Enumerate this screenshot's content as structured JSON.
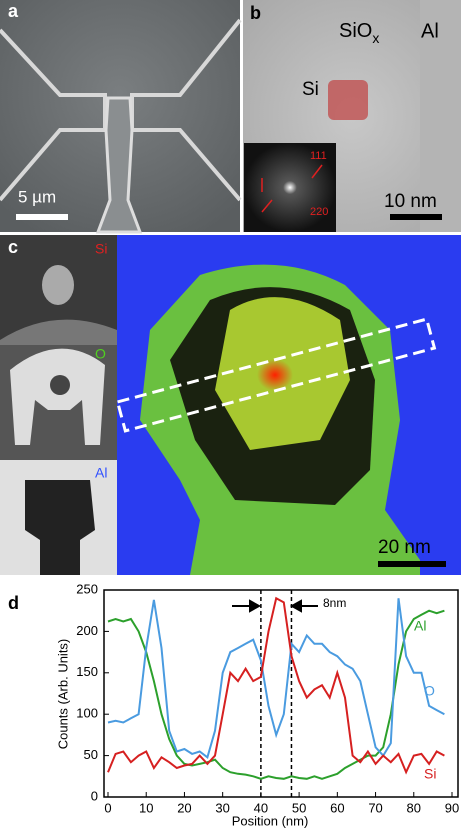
{
  "panels": {
    "a": {
      "label": "a",
      "scale_bar": "5 µm"
    },
    "b": {
      "label": "b",
      "oxide": {
        "main": "SiO",
        "sub": "x"
      },
      "metal": "Al",
      "core": "Si",
      "fft_spots": [
        "111",
        "220"
      ],
      "scale_bar": "10 nm"
    },
    "c": {
      "label": "c",
      "maps": [
        "Si",
        "O",
        "Al"
      ],
      "scale_bar": "20 nm"
    }
  },
  "chart_data": {
    "type": "line",
    "panel_label": "d",
    "x_label": "Position (nm)",
    "y_label": "Counts (Arb. Units)",
    "annotation": "8nm",
    "vlines": [
      40,
      48
    ],
    "x": [
      0,
      2,
      4,
      6,
      8,
      10,
      12,
      14,
      16,
      18,
      20,
      22,
      24,
      26,
      28,
      30,
      32,
      34,
      36,
      38,
      40,
      42,
      44,
      46,
      48,
      50,
      52,
      54,
      56,
      58,
      60,
      62,
      64,
      66,
      68,
      70,
      72,
      74,
      76,
      78,
      80,
      82,
      84,
      86,
      88
    ],
    "series": [
      {
        "name": "Al",
        "color": "#2ca02c",
        "values": [
          212,
          215,
          212,
          215,
          200,
          175,
          140,
          100,
          70,
          50,
          40,
          38,
          40,
          42,
          45,
          35,
          30,
          28,
          27,
          25,
          22,
          25,
          23,
          22,
          25,
          23,
          22,
          25,
          22,
          25,
          28,
          35,
          40,
          45,
          50,
          50,
          60,
          100,
          160,
          200,
          215,
          220,
          225,
          222,
          225
        ]
      },
      {
        "name": "O",
        "color": "#4a9be0",
        "values": [
          90,
          92,
          90,
          95,
          100,
          180,
          238,
          180,
          80,
          55,
          58,
          52,
          55,
          48,
          80,
          150,
          175,
          180,
          185,
          190,
          165,
          110,
          75,
          100,
          185,
          175,
          195,
          185,
          185,
          175,
          170,
          160,
          155,
          140,
          100,
          60,
          50,
          65,
          240,
          170,
          150,
          150,
          110,
          105,
          100
        ]
      },
      {
        "name": "Si",
        "color": "#d62020",
        "values": [
          30,
          52,
          55,
          42,
          50,
          55,
          35,
          48,
          42,
          35,
          38,
          40,
          50,
          40,
          50,
          100,
          150,
          140,
          155,
          140,
          145,
          200,
          240,
          235,
          170,
          140,
          120,
          130,
          135,
          120,
          150,
          120,
          50,
          42,
          55,
          40,
          50,
          42,
          52,
          30,
          50,
          52,
          40,
          55,
          50
        ]
      }
    ],
    "xlim": [
      0,
      90
    ],
    "xticks": [
      0,
      10,
      20,
      30,
      40,
      50,
      60,
      70,
      80,
      90
    ],
    "ylim": [
      0,
      250
    ],
    "yticks": [
      0,
      50,
      100,
      150,
      200,
      250
    ]
  }
}
